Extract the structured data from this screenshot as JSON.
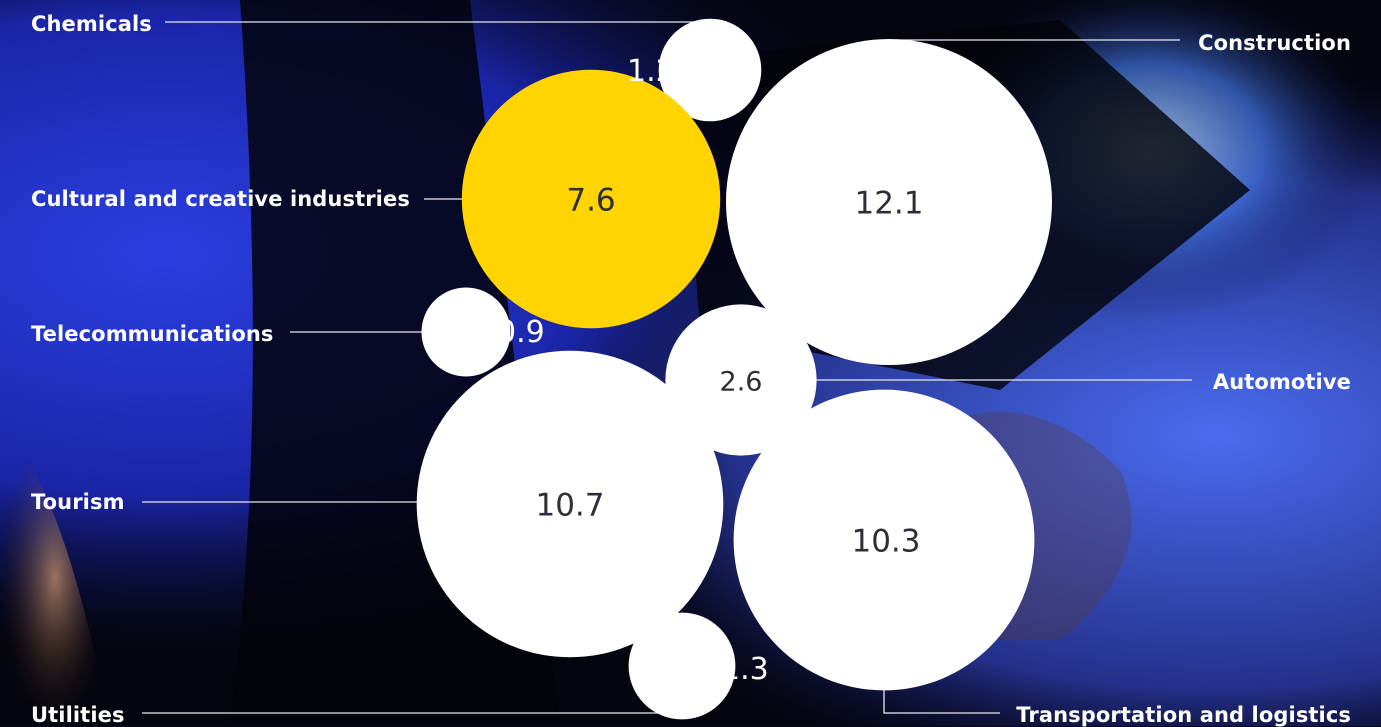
{
  "colors": {
    "default_bubble": "#ffffff",
    "highlight_bubble": "#ffd400",
    "connector": "#e8e8ef",
    "label": "#ffffff",
    "inner_value_text": "#2e2e38"
  },
  "chart_data": {
    "type": "bubble",
    "title": "",
    "series": [
      {
        "name": "Chemicals",
        "value": 1.2,
        "highlight": false
      },
      {
        "name": "Construction",
        "value": 12.1,
        "highlight": false
      },
      {
        "name": "Cultural and creative industries",
        "value": 7.6,
        "highlight": true
      },
      {
        "name": "Telecommunications",
        "value": 0.9,
        "highlight": false
      },
      {
        "name": "Automotive",
        "value": 2.6,
        "highlight": false
      },
      {
        "name": "Tourism",
        "value": 10.7,
        "highlight": false
      },
      {
        "name": "Transportation and logistics",
        "value": 10.3,
        "highlight": false
      },
      {
        "name": "Utilities",
        "value": 1.3,
        "highlight": false
      }
    ]
  }
}
